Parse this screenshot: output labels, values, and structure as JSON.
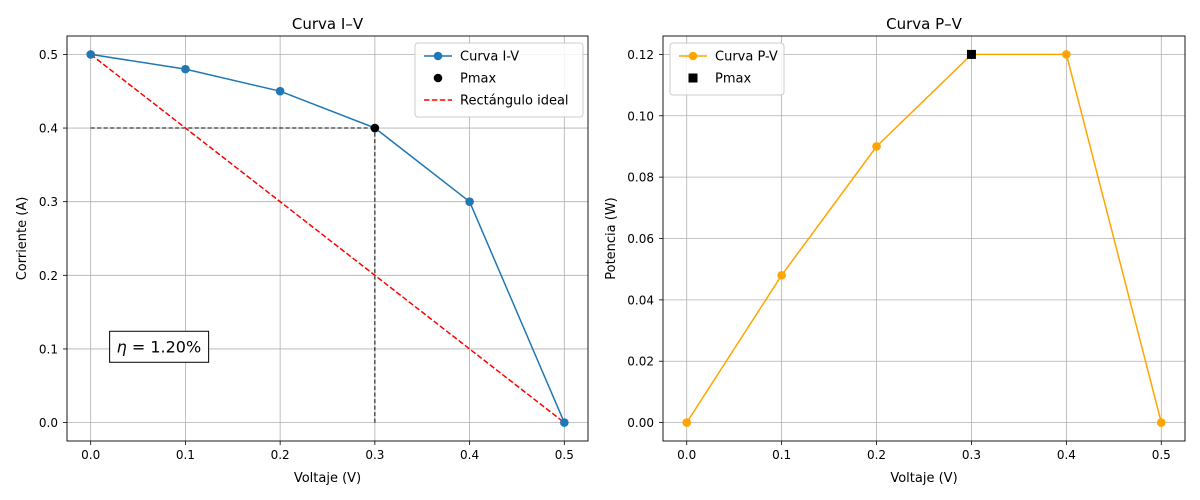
{
  "chart_data": [
    {
      "type": "line",
      "title": "Curva I–V",
      "xlabel": "Voltaje (V)",
      "ylabel": "Corriente (A)",
      "xlim": [
        -0.025,
        0.525
      ],
      "ylim": [
        -0.025,
        0.525
      ],
      "xticks": [
        "0.0",
        "0.1",
        "0.2",
        "0.3",
        "0.4",
        "0.5"
      ],
      "yticks": [
        "0.0",
        "0.1",
        "0.2",
        "0.3",
        "0.4",
        "0.5"
      ],
      "grid": true,
      "legend_position": "upper right",
      "series": [
        {
          "name": "Curva I-V",
          "x": [
            0.0,
            0.1,
            0.2,
            0.3,
            0.4,
            0.5
          ],
          "y": [
            0.5,
            0.48,
            0.45,
            0.4,
            0.3,
            0.0
          ],
          "color": "#1f77b4",
          "marker": "circle",
          "linestyle": "solid"
        },
        {
          "name": "Pmax",
          "x": [
            0.3
          ],
          "y": [
            0.4
          ],
          "color": "#000000",
          "marker": "circle",
          "linestyle": "none"
        },
        {
          "name": "Rectángulo ideal",
          "x": [
            0.0,
            0.5
          ],
          "y": [
            0.5,
            0.0
          ],
          "color": "#ff0000",
          "marker": "none",
          "linestyle": "dashed"
        }
      ],
      "guide_lines": [
        {
          "x": [
            0.0,
            0.3
          ],
          "y": [
            0.4,
            0.4
          ],
          "color": "#000000",
          "linestyle": "dashed"
        },
        {
          "x": [
            0.3,
            0.3
          ],
          "y": [
            0.0,
            0.4
          ],
          "color": "#000000",
          "linestyle": "dashed"
        }
      ],
      "annotation": {
        "symbol": "η",
        "text": " = 1.20%",
        "x": 0.02,
        "y": 0.105
      }
    },
    {
      "type": "line",
      "title": "Curva P–V",
      "xlabel": "Voltaje (V)",
      "ylabel": "Potencia (W)",
      "xlim": [
        -0.025,
        0.525
      ],
      "ylim": [
        -0.006,
        0.126
      ],
      "xticks": [
        "0.0",
        "0.1",
        "0.2",
        "0.3",
        "0.4",
        "0.5"
      ],
      "yticks": [
        "0.00",
        "0.02",
        "0.04",
        "0.06",
        "0.08",
        "0.10",
        "0.12"
      ],
      "grid": true,
      "legend_position": "upper left",
      "series": [
        {
          "name": "Curva P-V",
          "x": [
            0.0,
            0.1,
            0.2,
            0.3,
            0.4,
            0.5
          ],
          "y": [
            0.0,
            0.048,
            0.09,
            0.12,
            0.12,
            0.0
          ],
          "color": "#ffa500",
          "marker": "circle",
          "linestyle": "solid"
        },
        {
          "name": "Pmax",
          "x": [
            0.3
          ],
          "y": [
            0.12
          ],
          "color": "#000000",
          "marker": "square",
          "linestyle": "none"
        }
      ]
    }
  ]
}
